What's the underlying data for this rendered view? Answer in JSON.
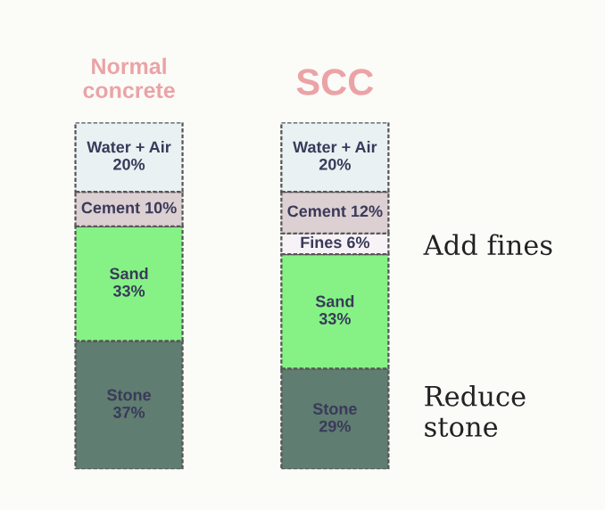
{
  "chart_data": {
    "type": "bar",
    "stacked": true,
    "categories": [
      "Normal\nconcrete",
      "SCC"
    ],
    "series": [
      {
        "color": "#5f7d70",
        "values": [
          37,
          29
        ],
        "value_labels": [
          "Stone\n37%",
          "Stone\n29%"
        ]
      },
      {
        "color": "#86f286",
        "values": [
          33,
          33
        ],
        "value_labels": [
          "Sand\n33%",
          "Sand\n33%"
        ]
      },
      {
        "color": "#f6f2f6",
        "values": [
          null,
          6
        ],
        "value_labels": [
          null,
          "Fines 6%"
        ]
      },
      {
        "color": "#ddd0d2",
        "values": [
          10,
          12
        ],
        "value_labels": [
          "Cement 10%",
          "Cement 12%"
        ]
      },
      {
        "color": "#e9f1f2",
        "values": [
          20,
          20
        ],
        "value_labels": [
          "Water + Air\n20%",
          "Water + Air\n20%"
        ]
      }
    ],
    "annotations": [
      "Add fines",
      "Reduce\nstone"
    ]
  }
}
